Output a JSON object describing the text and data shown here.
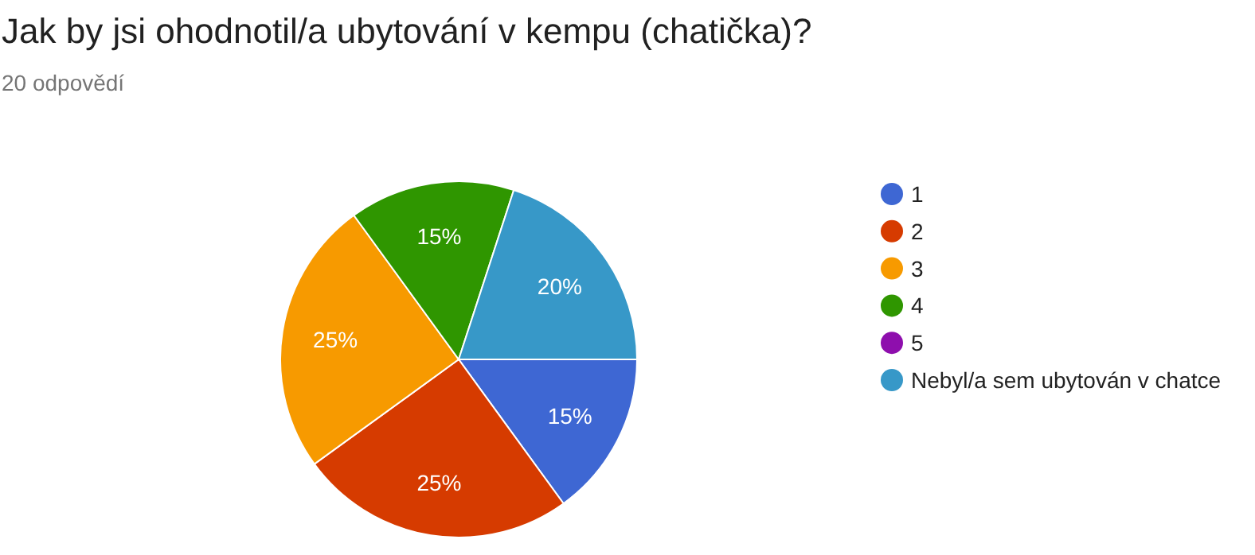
{
  "chart_data": {
    "type": "pie",
    "title": "Jak by jsi ohodnotil/a ubytování v kempu (chatička)?",
    "subtitle": "20 odpovědí",
    "categories": [
      "1",
      "2",
      "3",
      "4",
      "5",
      "Nebyl/a sem ubytován v chatce"
    ],
    "values": [
      15,
      25,
      25,
      15,
      0,
      20
    ],
    "value_labels": [
      "15%",
      "25%",
      "25%",
      "15%",
      null,
      "20%"
    ],
    "colors": [
      "#3e67d3",
      "#d63b00",
      "#f79a00",
      "#2f9600",
      "#8e0ead",
      "#3798c8"
    ],
    "legend": "right"
  }
}
